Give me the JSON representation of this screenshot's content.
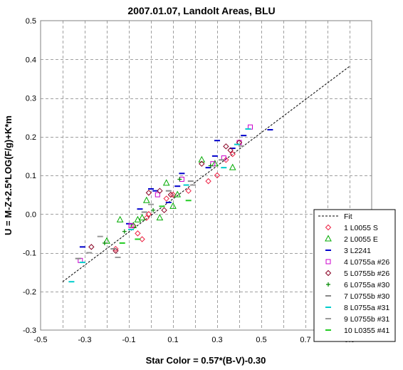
{
  "chart_data": {
    "type": "scatter",
    "title": "2007.01.07, Landolt Areas, BLU",
    "xlabel": "Star Color = 0.57*(B-V)-0.30",
    "ylabel": "U = M-Z+2.5*LOG(F/g)+K*m",
    "xlim": [
      -0.5,
      1.0
    ],
    "ylim": [
      -0.3,
      0.5
    ],
    "x_ticks": [
      "-0.5",
      "-0.3",
      "-0.1",
      "0.1",
      "0.3",
      "0.5",
      "0.7",
      "0.9"
    ],
    "y_ticks": [
      "-0.3",
      "-0.2",
      "-0.1",
      "0.0",
      "0.1",
      "0.2",
      "0.3",
      "0.4",
      "0.5"
    ],
    "x_tick_values": [
      -0.5,
      -0.3,
      -0.1,
      0.1,
      0.3,
      0.5,
      0.7,
      0.9
    ],
    "y_tick_values": [
      -0.3,
      -0.2,
      -0.1,
      0.0,
      0.1,
      0.2,
      0.3,
      0.4,
      0.5
    ],
    "grid": true,
    "legend_position": "bottom-right",
    "fit": {
      "name": "Fit",
      "x": [
        -0.4,
        0.9
      ],
      "y": [
        -0.175,
        0.382
      ],
      "color": "#000000"
    },
    "series": [
      {
        "name": "1 L0055 S",
        "marker": "diamond",
        "color": "#ee2244",
        "x": [
          -0.16,
          -0.08,
          -0.04,
          -0.06,
          -0.02,
          -0.01,
          0.07,
          0.1,
          0.17,
          0.3,
          0.37,
          0.34,
          0.26
        ],
        "y": [
          -0.09,
          -0.03,
          -0.065,
          -0.05,
          -0.01,
          0.0,
          0.04,
          0.05,
          0.06,
          0.1,
          0.155,
          0.14,
          0.085
        ]
      },
      {
        "name": "2 L0055 E",
        "marker": "triangle",
        "color": "#00aa00",
        "x": [
          -0.2,
          -0.14,
          -0.06,
          -0.02,
          0.04,
          0.07,
          0.1,
          0.12,
          0.23,
          0.37,
          0.29,
          -0.04,
          -0.08
        ],
        "y": [
          -0.07,
          -0.015,
          -0.015,
          0.035,
          -0.01,
          0.08,
          0.02,
          0.05,
          0.14,
          0.12,
          0.13,
          -0.01,
          -0.03
        ]
      },
      {
        "name": "3 L2241",
        "marker": "dash",
        "color": "#0000cc",
        "x": [
          -0.31,
          -0.1,
          -0.05,
          0.0,
          0.02,
          0.08,
          0.12,
          0.14,
          0.26,
          0.3,
          0.42,
          0.29,
          0.37,
          0.54
        ],
        "y": [
          -0.085,
          -0.025,
          0.013,
          0.065,
          0.06,
          0.03,
          0.072,
          0.105,
          0.12,
          0.19,
          0.203,
          0.15,
          0.17,
          0.218
        ]
      },
      {
        "name": "4 L0755a #26",
        "marker": "square",
        "color": "#cc00cc",
        "x": [
          -0.32,
          -0.09,
          0.03,
          0.14,
          0.33,
          0.4,
          0.45,
          0.28
        ],
        "y": [
          -0.12,
          -0.03,
          0.05,
          0.09,
          0.145,
          0.185,
          0.225,
          0.13
        ]
      },
      {
        "name": "5 L0755b #26",
        "marker": "diamond",
        "color": "#880022",
        "x": [
          -0.27,
          -0.16,
          -0.01,
          0.04,
          0.09,
          0.23,
          0.34,
          0.36,
          0.4,
          0.06
        ],
        "y": [
          -0.085,
          -0.095,
          0.055,
          0.06,
          0.05,
          0.13,
          0.175,
          0.165,
          0.185,
          0.01
        ]
      },
      {
        "name": "6 L0755a #30",
        "marker": "plus",
        "color": "#008800",
        "x": [
          -0.21,
          -0.12,
          0.01,
          0.13,
          0.27
        ],
        "y": [
          -0.075,
          -0.045,
          0.01,
          0.09,
          0.125
        ]
      },
      {
        "name": "7 L0755b #30",
        "marker": "dash",
        "color": "#888888",
        "x": [
          -0.33,
          -0.17,
          -0.03,
          0.08,
          0.18,
          0.32
        ],
        "y": [
          -0.115,
          -0.09,
          0.005,
          0.06,
          0.085,
          0.14
        ]
      },
      {
        "name": "8 L0755a #31",
        "marker": "dash",
        "color": "#00cccc",
        "x": [
          -0.36,
          -0.31,
          -0.09,
          0.16,
          0.33,
          0.39,
          0.44
        ],
        "y": [
          -0.175,
          -0.125,
          -0.04,
          0.075,
          0.12,
          0.18,
          0.22
        ]
      },
      {
        "name": "9 L0755b #31",
        "marker": "dash",
        "color": "#999999",
        "x": [
          -0.28,
          -0.23,
          -0.15,
          0.0,
          0.19,
          0.41
        ],
        "y": [
          -0.1,
          -0.058,
          -0.112,
          0.025,
          0.075,
          0.176
        ]
      },
      {
        "name": "10 L0355 #41",
        "marker": "dash",
        "color": "#22cc22",
        "x": [
          -0.13,
          -0.06,
          0.05,
          0.17
        ],
        "y": [
          -0.075,
          -0.065,
          0.02,
          0.035
        ]
      }
    ]
  }
}
